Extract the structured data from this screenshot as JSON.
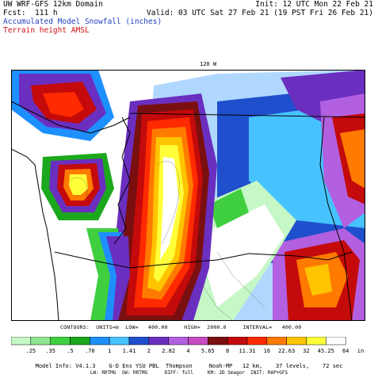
{
  "header": {
    "left_line1": "UW WRF-GFS 12km Domain",
    "left_line2": "Fcst:  111 h",
    "left_line3": "Accumulated Model Snowfall (inches)",
    "left_line4": "Terrain height AMSL",
    "right_line1": "Init: 12 UTC Mon 22 Feb 21",
    "right_line2": "Valid: 03 UTC Sat 27 Feb 21 (19 PST Fri 26 Feb 21)"
  },
  "map": {
    "lon_label": "120 W"
  },
  "contours": {
    "text": "CONTOURS:  UNITS=m  LOW=   400.00     HIGH=  2000.0     INTERVAL=   400.00"
  },
  "colorbar": {
    "labels": [
      ".25",
      ".35",
      ".5",
      ".70",
      "1",
      "1.41",
      "2",
      "2.82",
      "4",
      "5.65",
      "8",
      "11.31",
      "16",
      "22.63",
      "32",
      "45.25",
      "64",
      "in"
    ],
    "colors": [
      "#c6f7c6",
      "#8ee68e",
      "#3fcf3f",
      "#1ca81c",
      "#1e8fff",
      "#46c3ff",
      "#1f4fcc",
      "#6b2fbf",
      "#b25fe0",
      "#c64bc0",
      "#7a0f0f",
      "#c40a0a",
      "#ff2a00",
      "#ff7a00",
      "#ffc400",
      "#ffff3a",
      "#ffffff"
    ]
  },
  "model_info": {
    "line1": "Model Info: V4.1.3    G-D Ens YSU PBL  Thompson     Noah-MP   12 km,    37 levels,    72 sec",
    "line2": "LW: RRTMG  SW: RRTMG      DIFF: full     KM: 2D Smagor  INIT: RAP+GFS"
  }
}
